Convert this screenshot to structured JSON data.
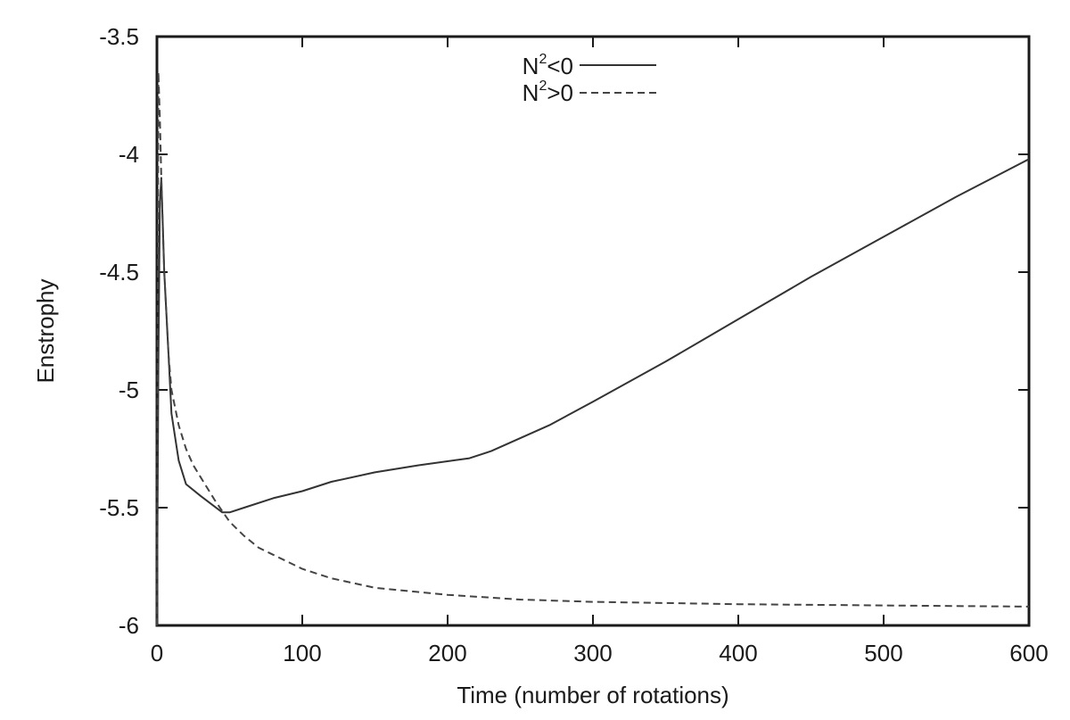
{
  "chart_data": {
    "type": "line",
    "title": "",
    "xlabel": "Time (number of rotations)",
    "ylabel": "Enstrophy",
    "xlim": [
      0,
      600
    ],
    "ylim": [
      -6,
      -3.5
    ],
    "xticks": [
      "0",
      "100",
      "200",
      "300",
      "400",
      "500",
      "600"
    ],
    "yticks": [
      "-3.5",
      "-4",
      "-4.5",
      "-5",
      "-5.5",
      "-6"
    ],
    "grid": false,
    "legend_position": "top-center",
    "series": [
      {
        "name": "N²<0",
        "name_base": "N",
        "name_sup": "2",
        "name_rest": "<0",
        "style": "solid",
        "color": "#333333",
        "x": [
          0,
          1,
          2,
          3,
          5,
          8,
          10,
          15,
          20,
          30,
          45,
          50,
          60,
          80,
          100,
          120,
          150,
          180,
          215,
          230,
          270,
          300,
          350,
          400,
          450,
          500,
          550,
          600
        ],
        "y": [
          -6.0,
          -4.9,
          -4.2,
          -4.1,
          -4.5,
          -4.85,
          -5.1,
          -5.3,
          -5.4,
          -5.45,
          -5.52,
          -5.52,
          -5.5,
          -5.46,
          -5.43,
          -5.39,
          -5.35,
          -5.32,
          -5.29,
          -5.26,
          -5.15,
          -5.05,
          -4.88,
          -4.7,
          -4.52,
          -4.35,
          -4.18,
          -4.02
        ]
      },
      {
        "name": "N²>0",
        "name_base": "N",
        "name_sup": "2",
        "name_rest": ">0",
        "style": "dashed",
        "color": "#444444",
        "x": [
          0,
          1,
          2,
          3,
          5,
          8,
          10,
          15,
          20,
          25,
          30,
          40,
          50,
          60,
          70,
          80,
          100,
          120,
          150,
          200,
          250,
          300,
          400,
          500,
          600
        ],
        "y": [
          -6.0,
          -3.65,
          -3.85,
          -4.1,
          -4.5,
          -4.85,
          -5.0,
          -5.15,
          -5.25,
          -5.32,
          -5.37,
          -5.47,
          -5.56,
          -5.62,
          -5.67,
          -5.7,
          -5.76,
          -5.8,
          -5.84,
          -5.87,
          -5.89,
          -5.9,
          -5.91,
          -5.915,
          -5.92
        ]
      }
    ]
  }
}
